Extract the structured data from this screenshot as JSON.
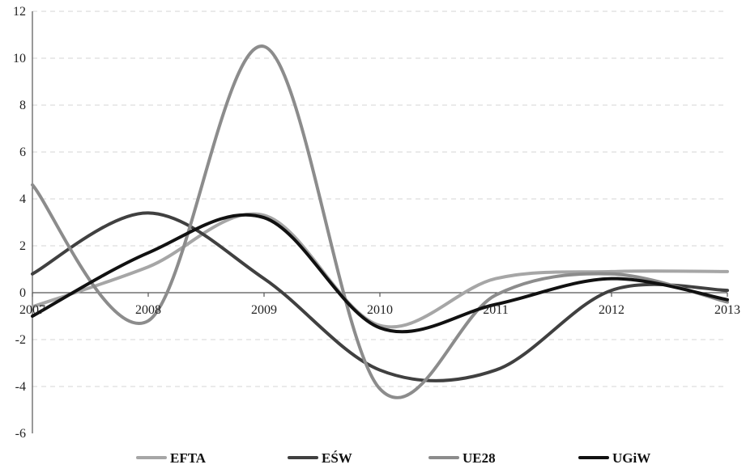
{
  "chart_data": {
    "type": "line",
    "x": [
      2007,
      2008,
      2009,
      2010,
      2011,
      2012,
      2013
    ],
    "x_tick_labels": [
      "2007",
      "2008",
      "2009",
      "2010",
      "2011",
      "2012",
      "2013"
    ],
    "ylim": [
      -6,
      12
    ],
    "y_ticks": [
      -6,
      -4,
      -2,
      0,
      2,
      4,
      6,
      8,
      10,
      12
    ],
    "y_tick_labels": [
      "-6",
      "-4",
      "-2",
      "0",
      "2",
      "4",
      "6",
      "8",
      "10",
      "12"
    ],
    "grid": true,
    "smooth": true,
    "legend_position": "bottom",
    "series": [
      {
        "name": "EFTA",
        "color": "#a6a6a6",
        "values": [
          -0.6,
          1.1,
          3.3,
          -1.4,
          0.6,
          0.9,
          0.9
        ]
      },
      {
        "name": "EŚW",
        "color": "#404040",
        "values": [
          0.8,
          3.4,
          0.6,
          -3.3,
          -3.3,
          0.1,
          0.1
        ]
      },
      {
        "name": "UE28",
        "color": "#8c8c8c",
        "values": [
          4.6,
          -1.2,
          10.5,
          -4.1,
          -0.1,
          0.8,
          -0.4
        ]
      },
      {
        "name": "UGiW",
        "color": "#111111",
        "values": [
          -1.0,
          1.7,
          3.2,
          -1.5,
          -0.5,
          0.6,
          -0.3
        ]
      }
    ],
    "title": "",
    "xlabel": "",
    "ylabel": ""
  }
}
